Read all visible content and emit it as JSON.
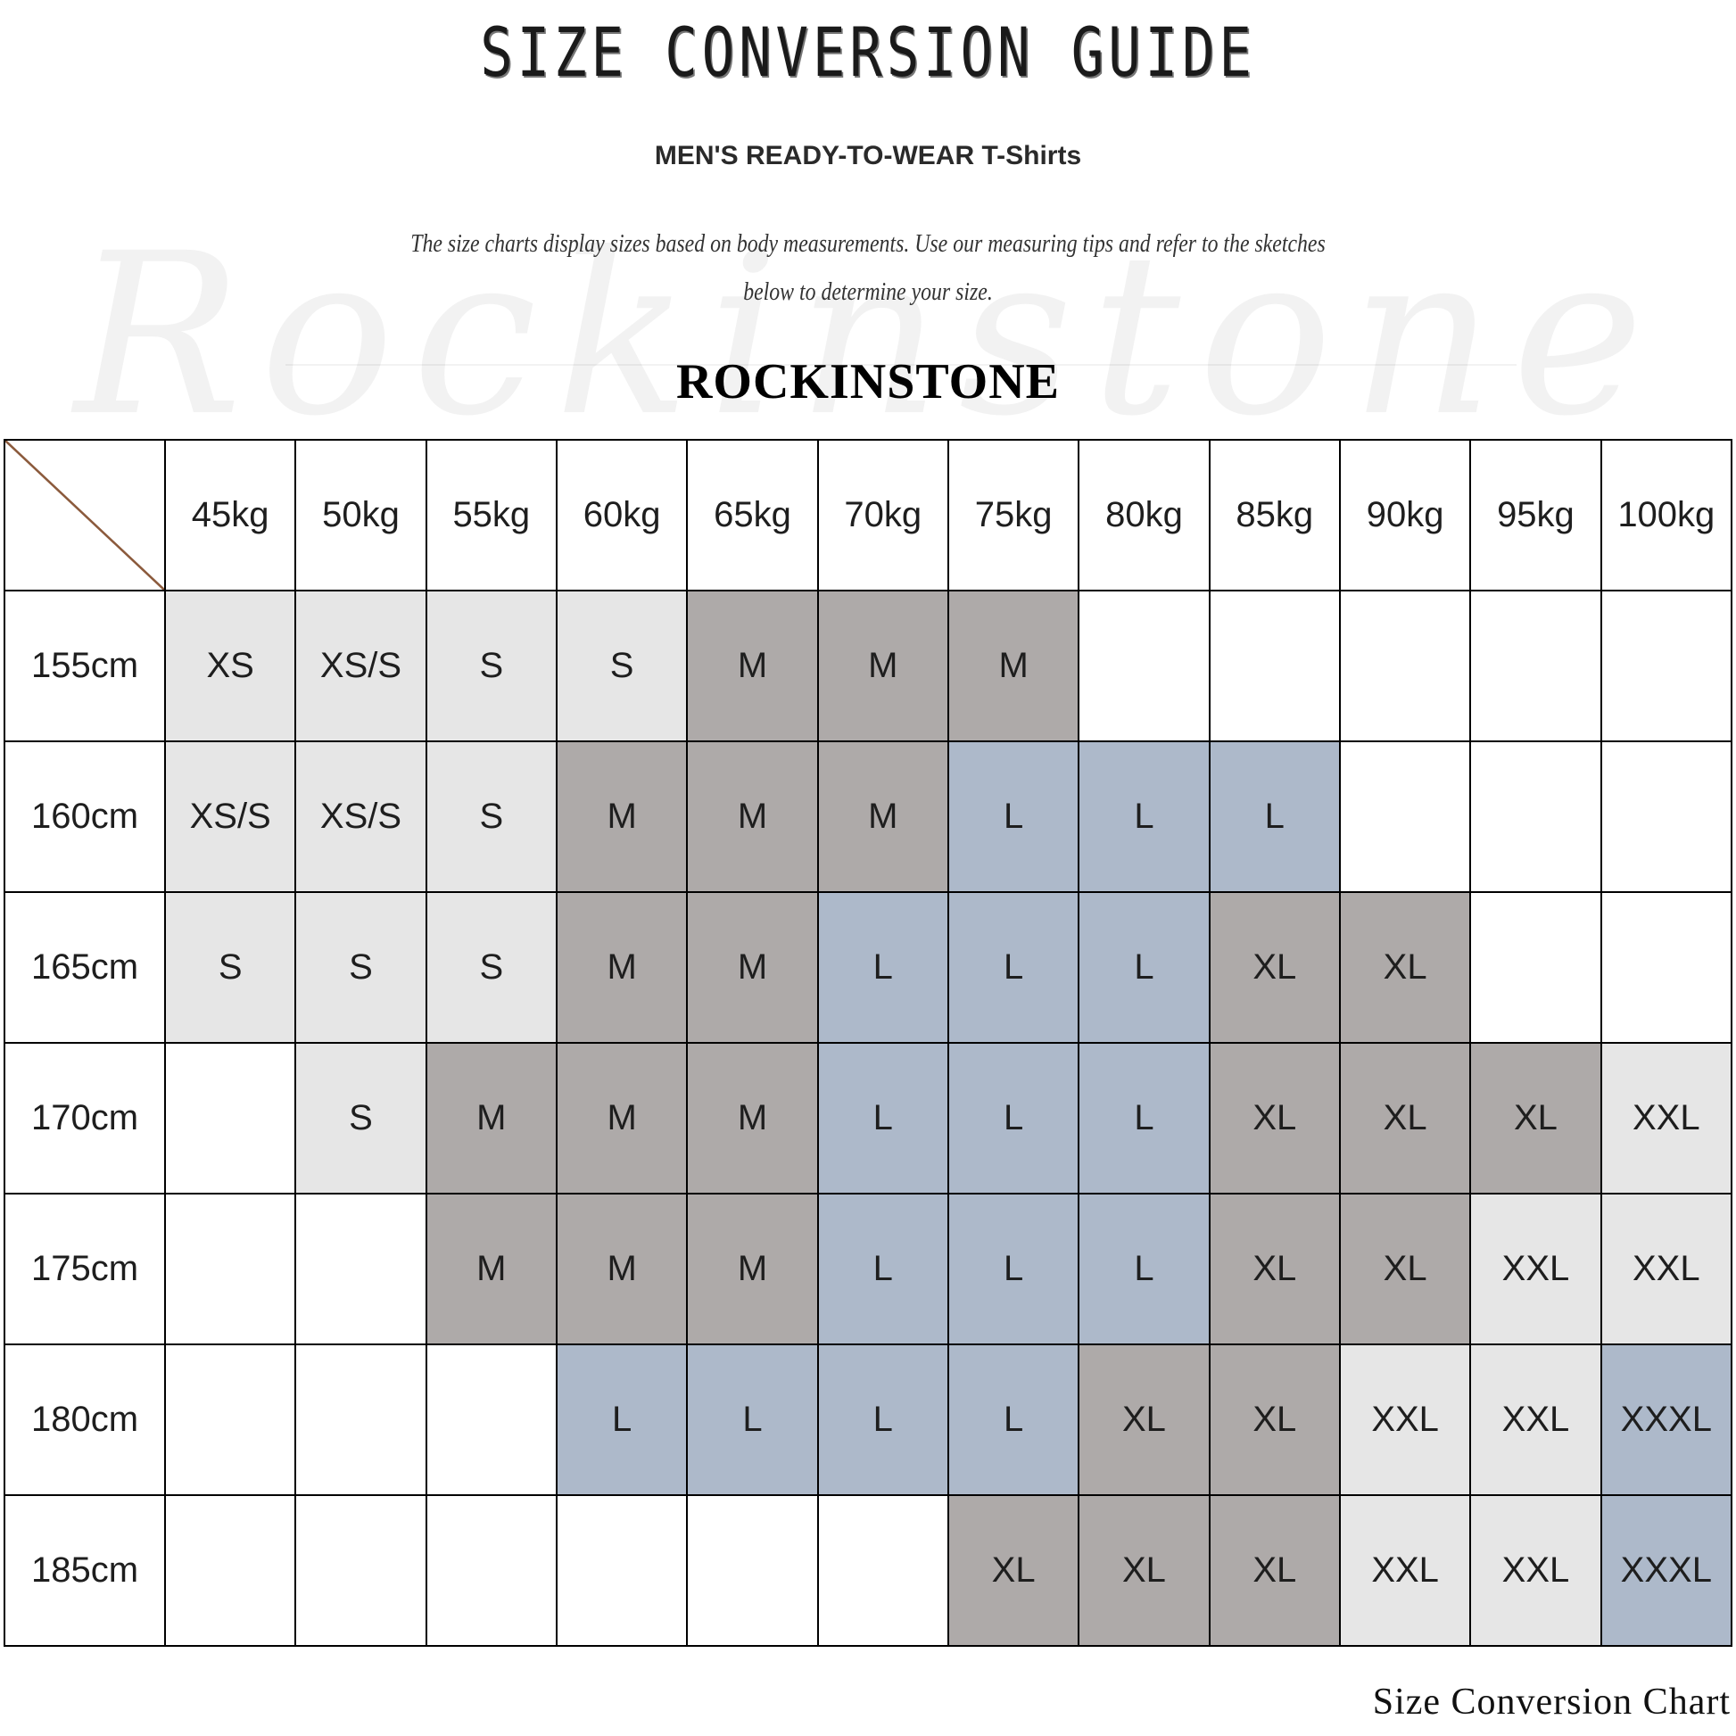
{
  "header": {
    "title": "SIZE CONVERSION GUIDE",
    "subtitle": "MEN'S READY-TO-WEAR T-Shirts",
    "description_line1": "The size charts display sizes based on body measurements. Use our measuring tips and refer to the sketches",
    "description_line2": "below to determine your size.",
    "brand": "ROCKINSTONE",
    "watermark": "Rockinstone"
  },
  "colors": {
    "light": "#e6e6e6",
    "dark": "#aeaaa9",
    "blue": "#adb9ca",
    "corner_line": "#8b5a3c"
  },
  "size_colors": {
    "XS": "light",
    "XS/S": "light",
    "S": "light",
    "M": "dark",
    "L": "blue",
    "XL": "dark",
    "XXL": "light",
    "XXXL": "blue"
  },
  "table": {
    "weights": [
      "45kg",
      "50kg",
      "55kg",
      "60kg",
      "65kg",
      "70kg",
      "75kg",
      "80kg",
      "85kg",
      "90kg",
      "95kg",
      "100kg"
    ],
    "rows": [
      {
        "height": "155cm",
        "sizes": [
          "XS",
          "XS/S",
          "S",
          "S",
          "M",
          "M",
          "M",
          "",
          "",
          "",
          "",
          ""
        ]
      },
      {
        "height": "160cm",
        "sizes": [
          "XS/S",
          "XS/S",
          "S",
          "M",
          "M",
          "M",
          "L",
          "L",
          "L",
          "",
          "",
          ""
        ]
      },
      {
        "height": "165cm",
        "sizes": [
          "S",
          "S",
          "S",
          "M",
          "M",
          "L",
          "L",
          "L",
          "XL",
          "XL",
          "",
          ""
        ]
      },
      {
        "height": "170cm",
        "sizes": [
          "",
          "S",
          "M",
          "M",
          "M",
          "L",
          "L",
          "L",
          "XL",
          "XL",
          "XL",
          "XXL"
        ]
      },
      {
        "height": "175cm",
        "sizes": [
          "",
          "",
          "M",
          "M",
          "M",
          "L",
          "L",
          "L",
          "XL",
          "XL",
          "XXL",
          "XXL"
        ]
      },
      {
        "height": "180cm",
        "sizes": [
          "",
          "",
          "",
          "L",
          "L",
          "L",
          "L",
          "XL",
          "XL",
          "XXL",
          "XXL",
          "XXXL"
        ]
      },
      {
        "height": "185cm",
        "sizes": [
          "",
          "",
          "",
          "",
          "",
          "",
          "XL",
          "XL",
          "XL",
          "XXL",
          "XXL",
          "XXXL"
        ]
      }
    ]
  },
  "footer": {
    "caption": "Size Conversion Chart"
  }
}
